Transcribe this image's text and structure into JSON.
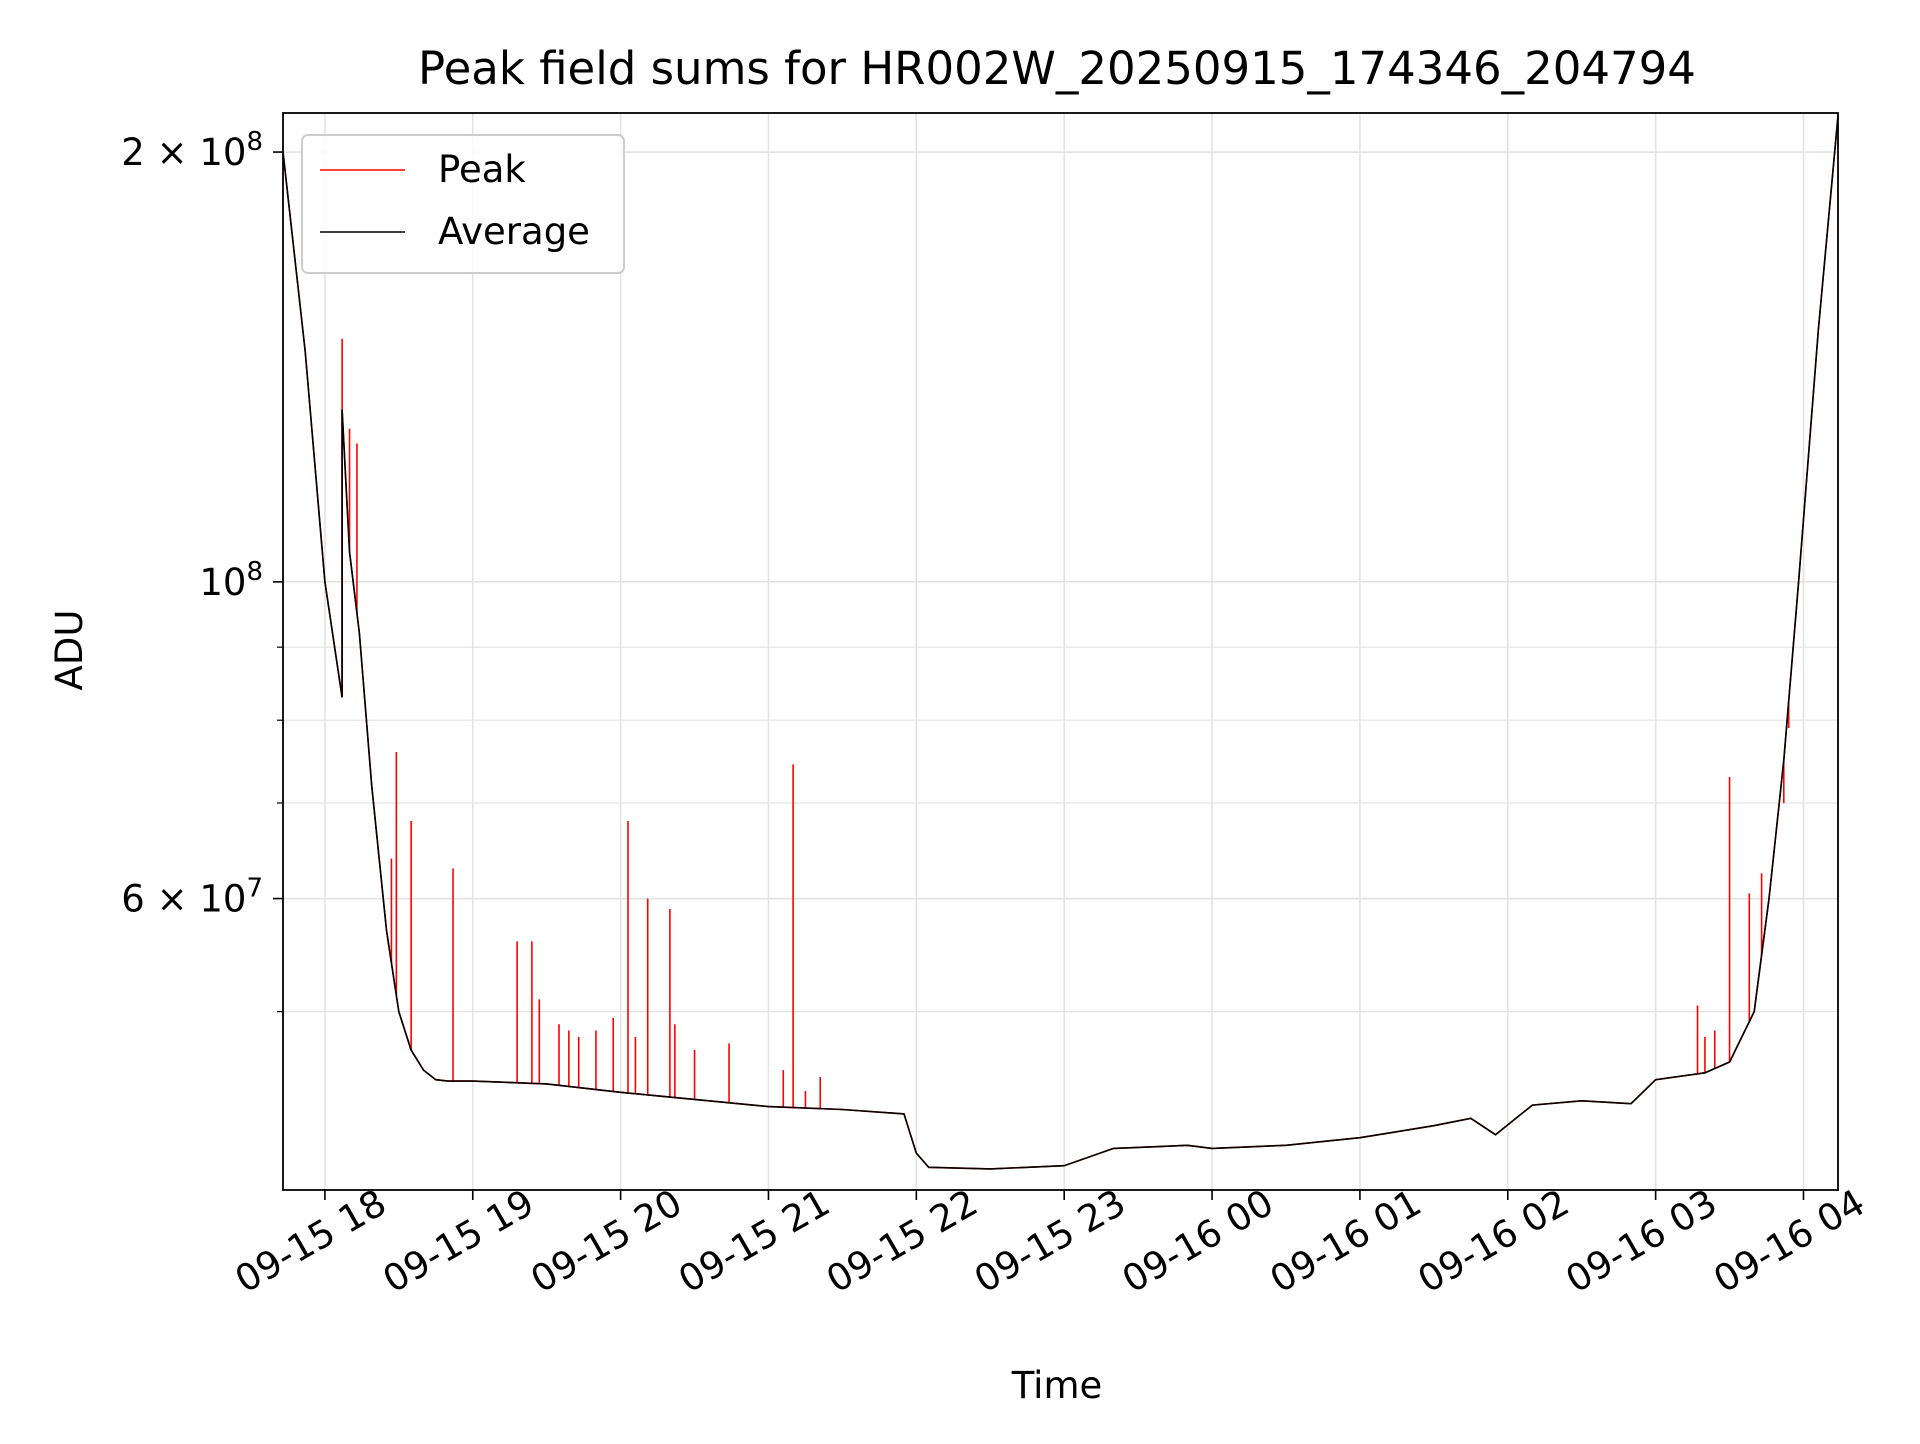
{
  "chart_data": {
    "type": "line",
    "title": "Peak field sums for HR002W_20250915_174346_204794",
    "xlabel": "Time",
    "ylabel": "ADU",
    "y_scale": "log",
    "ylim": [
      37500000,
      213000000
    ],
    "xlim": [
      "2025-09-15 17:43",
      "2025-09-16 04:14"
    ],
    "grid": true,
    "legend_position": "top-left",
    "x_ticks": [
      "2025-09-15 18:00",
      "2025-09-15 19:00",
      "2025-09-15 20:00",
      "2025-09-15 21:00",
      "2025-09-15 22:00",
      "2025-09-15 23:00",
      "2025-09-16 00:00",
      "2025-09-16 01:00",
      "2025-09-16 02:00",
      "2025-09-16 03:00",
      "2025-09-16 04:00"
    ],
    "x_tick_labels": [
      "09-15 18",
      "09-15 19",
      "09-15 20",
      "09-15 21",
      "09-15 22",
      "09-15 23",
      "09-16 00",
      "09-16 01",
      "09-16 02",
      "09-16 03",
      "09-16 04"
    ],
    "y_major_ticks": [
      {
        "value": 200000000,
        "mantissa": "2",
        "times": "×",
        "base": "10",
        "exp": "8"
      },
      {
        "value": 100000000,
        "mantissa": "",
        "times": "",
        "base": "10",
        "exp": "8"
      },
      {
        "value": 60000000,
        "mantissa": "6",
        "times": "×",
        "base": "10",
        "exp": "7"
      }
    ],
    "y_minor_ticks": [
      50000000,
      70000000,
      80000000,
      90000000
    ],
    "series": [
      {
        "name": "Average",
        "color": "#000000",
        "x": [
          "2025-09-15 17:43",
          "2025-09-15 17:52",
          "2025-09-15 18:00",
          "2025-09-15 18:07",
          "2025-09-15 18:07",
          "2025-09-15 18:10",
          "2025-09-15 18:14",
          "2025-09-15 18:19",
          "2025-09-15 18:25",
          "2025-09-15 18:30",
          "2025-09-15 18:35",
          "2025-09-15 18:40",
          "2025-09-15 18:45",
          "2025-09-15 18:50",
          "2025-09-15 19:00",
          "2025-09-15 19:30",
          "2025-09-15 20:00",
          "2025-09-15 20:30",
          "2025-09-15 21:00",
          "2025-09-15 21:30",
          "2025-09-15 21:55",
          "2025-09-15 22:00",
          "2025-09-15 22:05",
          "2025-09-15 22:30",
          "2025-09-15 23:00",
          "2025-09-15 23:20",
          "2025-09-15 23:35",
          "2025-09-15 23:50",
          "2025-09-16 00:00",
          "2025-09-16 00:30",
          "2025-09-16 01:00",
          "2025-09-16 01:30",
          "2025-09-16 01:45",
          "2025-09-16 01:55",
          "2025-09-16 02:10",
          "2025-09-16 02:30",
          "2025-09-16 02:50",
          "2025-09-16 03:00",
          "2025-09-16 03:20",
          "2025-09-16 03:30",
          "2025-09-16 03:40",
          "2025-09-16 03:46",
          "2025-09-16 03:52",
          "2025-09-16 03:58",
          "2025-09-16 04:06",
          "2025-09-16 04:14"
        ],
        "values": [
          200000000,
          145000000,
          100000000,
          83000000,
          132000000,
          105000000,
          92000000,
          72000000,
          57000000,
          50000000,
          47000000,
          45500000,
          44800000,
          44700000,
          44700000,
          44500000,
          43900000,
          43400000,
          42900000,
          42700000,
          42400000,
          39800000,
          38900000,
          38800000,
          39000000,
          40100000,
          40200000,
          40300000,
          40100000,
          40300000,
          40800000,
          41600000,
          42100000,
          41000000,
          43000000,
          43300000,
          43100000,
          44800000,
          45300000,
          46100000,
          50000000,
          60000000,
          75000000,
          100000000,
          150000000,
          212000000
        ]
      },
      {
        "name": "Peak",
        "color": "#ff0000",
        "spikes": [
          {
            "x": "2025-09-15 18:07",
            "y": 148000000
          },
          {
            "x": "2025-09-15 18:10",
            "y": 128000000
          },
          {
            "x": "2025-09-15 18:13",
            "y": 125000000
          },
          {
            "x": "2025-09-15 18:29",
            "y": 76000000
          },
          {
            "x": "2025-09-15 18:27",
            "y": 64000000
          },
          {
            "x": "2025-09-15 18:35",
            "y": 68000000
          },
          {
            "x": "2025-09-15 18:52",
            "y": 63000000
          },
          {
            "x": "2025-09-15 19:18",
            "y": 56000000
          },
          {
            "x": "2025-09-15 19:24",
            "y": 56000000
          },
          {
            "x": "2025-09-15 19:27",
            "y": 51000000
          },
          {
            "x": "2025-09-15 19:35",
            "y": 49000000
          },
          {
            "x": "2025-09-15 19:39",
            "y": 48500000
          },
          {
            "x": "2025-09-15 19:43",
            "y": 48000000
          },
          {
            "x": "2025-09-15 19:50",
            "y": 48500000
          },
          {
            "x": "2025-09-15 19:57",
            "y": 49500000
          },
          {
            "x": "2025-09-15 20:03",
            "y": 68000000
          },
          {
            "x": "2025-09-15 20:06",
            "y": 48000000
          },
          {
            "x": "2025-09-15 20:11",
            "y": 60000000
          },
          {
            "x": "2025-09-15 20:20",
            "y": 59000000
          },
          {
            "x": "2025-09-15 20:22",
            "y": 49000000
          },
          {
            "x": "2025-09-15 20:30",
            "y": 47000000
          },
          {
            "x": "2025-09-15 20:44",
            "y": 47500000
          },
          {
            "x": "2025-09-15 21:06",
            "y": 45500000
          },
          {
            "x": "2025-09-15 21:10",
            "y": 74500000
          },
          {
            "x": "2025-09-15 21:15",
            "y": 44000000
          },
          {
            "x": "2025-09-15 21:21",
            "y": 45000000
          },
          {
            "x": "2025-09-16 03:17",
            "y": 50500000
          },
          {
            "x": "2025-09-16 03:20",
            "y": 48000000
          },
          {
            "x": "2025-09-16 03:24",
            "y": 48500000
          },
          {
            "x": "2025-09-16 03:30",
            "y": 73000000
          },
          {
            "x": "2025-09-16 03:38",
            "y": 60500000
          },
          {
            "x": "2025-09-16 03:43",
            "y": 62500000
          },
          {
            "x": "2025-09-16 03:52",
            "y": 70000000
          },
          {
            "x": "2025-09-16 03:54",
            "y": 79000000
          }
        ]
      }
    ],
    "legend": [
      "Peak",
      "Average"
    ]
  }
}
